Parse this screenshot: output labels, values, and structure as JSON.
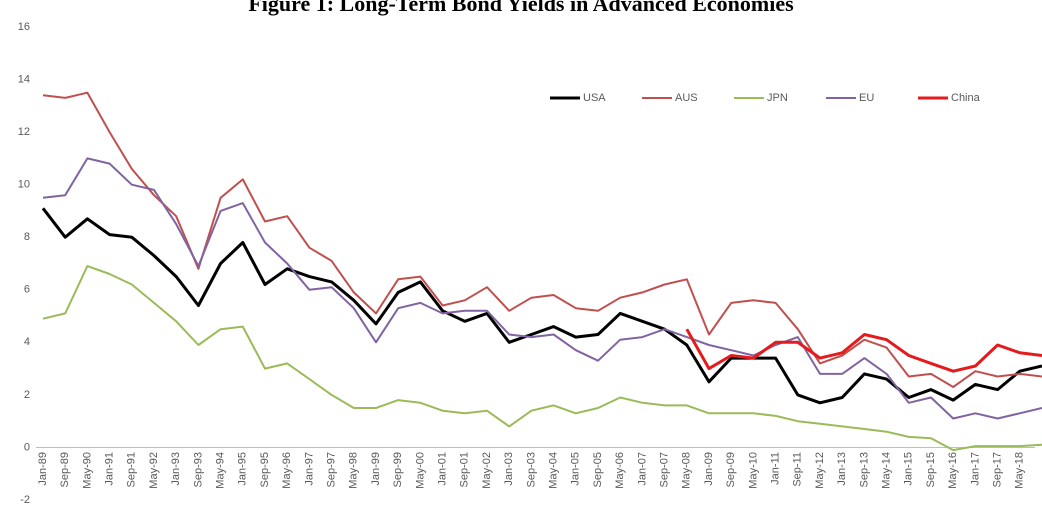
{
  "chart_data": {
    "type": "line",
    "title": "Figure 1: Long-Term Bond Yields in Advanced Economies",
    "categories": [
      "Jan-89",
      "Sep-89",
      "May-90",
      "Jan-91",
      "Sep-91",
      "May-92",
      "Jan-93",
      "Sep-93",
      "May-94",
      "Jan-95",
      "Sep-95",
      "May-96",
      "Jan-97",
      "Sep-97",
      "May-98",
      "Jan-99",
      "Sep-99",
      "May-00",
      "Jan-01",
      "Sep-01",
      "May-02",
      "Jan-03",
      "Sep-03",
      "May-04",
      "Jan-05",
      "Sep-05",
      "May-06",
      "Jan-07",
      "Sep-07",
      "May-08",
      "Jan-09",
      "Sep-09",
      "May-10",
      "Jan-11",
      "Sep-11",
      "May-12",
      "Jan-13",
      "Sep-13",
      "May-14",
      "Jan-15",
      "Sep-15",
      "May-16",
      "Jan-17",
      "Sep-17",
      "May-18",
      null
    ],
    "series": [
      {
        "name": "USA",
        "color": "#000000",
        "width": 3,
        "values": [
          9.1,
          8.0,
          8.7,
          8.1,
          8.0,
          7.3,
          6.5,
          5.4,
          7.0,
          7.8,
          6.2,
          6.8,
          6.5,
          6.3,
          5.6,
          4.7,
          5.9,
          6.3,
          5.2,
          4.8,
          5.1,
          4.0,
          4.3,
          4.6,
          4.2,
          4.3,
          5.1,
          4.8,
          4.5,
          3.9,
          2.5,
          3.4,
          3.4,
          3.4,
          2.0,
          1.7,
          1.9,
          2.8,
          2.6,
          1.9,
          2.2,
          1.8,
          2.4,
          2.2,
          2.9,
          3.1
        ]
      },
      {
        "name": "AUS",
        "color": "#c0504d",
        "width": 2,
        "values": [
          13.4,
          13.3,
          13.5,
          12.0,
          10.6,
          9.6,
          8.8,
          6.8,
          9.5,
          10.2,
          8.6,
          8.8,
          7.6,
          7.1,
          5.9,
          5.1,
          6.4,
          6.5,
          5.4,
          5.6,
          6.1,
          5.2,
          5.7,
          5.8,
          5.3,
          5.2,
          5.7,
          5.9,
          6.2,
          6.4,
          4.3,
          5.5,
          5.6,
          5.5,
          4.5,
          3.2,
          3.5,
          4.1,
          3.8,
          2.7,
          2.8,
          2.3,
          2.9,
          2.7,
          2.8,
          2.7
        ]
      },
      {
        "name": "JPN",
        "color": "#9bbb59",
        "width": 2,
        "values": [
          4.9,
          5.1,
          6.9,
          6.6,
          6.2,
          5.5,
          4.8,
          3.9,
          4.5,
          4.6,
          3.0,
          3.2,
          2.6,
          2.0,
          1.5,
          1.5,
          1.8,
          1.7,
          1.4,
          1.3,
          1.4,
          0.8,
          1.4,
          1.6,
          1.3,
          1.5,
          1.9,
          1.7,
          1.6,
          1.6,
          1.3,
          1.3,
          1.3,
          1.2,
          1.0,
          0.9,
          0.8,
          0.7,
          0.6,
          0.4,
          0.35,
          -0.1,
          0.05,
          0.05,
          0.05,
          0.1
        ]
      },
      {
        "name": "EU",
        "color": "#8064a2",
        "width": 2,
        "values": [
          9.5,
          9.6,
          11.0,
          10.8,
          10.0,
          9.8,
          8.5,
          6.9,
          9.0,
          9.3,
          7.8,
          7.0,
          6.0,
          6.1,
          5.3,
          4.0,
          5.3,
          5.5,
          5.1,
          5.2,
          5.2,
          4.3,
          4.2,
          4.3,
          3.7,
          3.3,
          4.1,
          4.2,
          4.5,
          4.2,
          3.9,
          3.7,
          3.5,
          3.9,
          4.2,
          2.8,
          2.8,
          3.4,
          2.8,
          1.7,
          1.9,
          1.1,
          1.3,
          1.1,
          1.3,
          1.5
        ]
      },
      {
        "name": "China",
        "color": "#e41a1c",
        "width": 3,
        "values": [
          null,
          null,
          null,
          null,
          null,
          null,
          null,
          null,
          null,
          null,
          null,
          null,
          null,
          null,
          null,
          null,
          null,
          null,
          null,
          null,
          null,
          null,
          null,
          null,
          null,
          null,
          null,
          null,
          null,
          4.5,
          3.0,
          3.5,
          3.4,
          4.0,
          4.0,
          3.4,
          3.6,
          4.3,
          4.1,
          3.5,
          3.2,
          2.9,
          3.1,
          3.9,
          3.6,
          3.5
        ]
      }
    ],
    "ylim": [
      -2,
      16
    ],
    "yticks": [
      -2,
      0,
      2,
      4,
      6,
      8,
      10,
      12,
      14,
      16
    ],
    "grid": false
  }
}
